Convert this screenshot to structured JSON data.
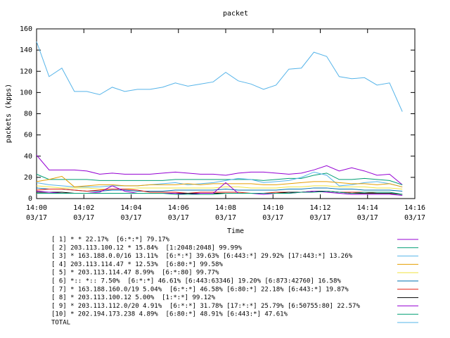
{
  "chart_data": {
    "type": "line",
    "title": "packet",
    "xlabel": "Time",
    "ylabel": "packets (kpps)",
    "x": [
      0,
      0.53,
      1.07,
      1.6,
      2.13,
      2.67,
      3.2,
      3.73,
      4.27,
      4.8,
      5.33,
      5.87,
      6.4,
      6.93,
      7.47,
      8,
      8.53,
      9.07,
      9.6,
      10.13,
      10.67,
      11.2,
      11.73,
      12.27,
      12.8,
      13.33,
      13.87,
      14.4,
      14.93,
      15.47
    ],
    "xlim": [
      0,
      16
    ],
    "xticks": [
      {
        "value": 0,
        "label": "14:00\n03/17"
      },
      {
        "value": 2,
        "label": "14:02\n03/17"
      },
      {
        "value": 4,
        "label": "14:04\n03/17"
      },
      {
        "value": 6,
        "label": "14:06\n03/17"
      },
      {
        "value": 8,
        "label": "14:08\n03/17"
      },
      {
        "value": 10,
        "label": "14:10\n03/17"
      },
      {
        "value": 12,
        "label": "14:12\n03/17"
      },
      {
        "value": 14,
        "label": "14:14\n03/17"
      },
      {
        "value": 16,
        "label": "14:16\n03/17"
      }
    ],
    "ylim": [
      0,
      160
    ],
    "yticks": [
      0,
      20,
      40,
      60,
      80,
      100,
      120,
      140,
      160
    ],
    "grid": false,
    "series": [
      {
        "name": "[ 1] * * 22.17%  [6:*:*] 79.17%",
        "color": "#9400d3",
        "values": [
          41,
          27,
          27,
          27,
          26,
          23,
          24,
          23,
          23,
          23,
          24,
          25,
          24,
          23,
          23,
          22,
          24,
          25,
          25,
          24,
          23,
          24,
          27,
          31,
          26,
          29,
          26,
          22,
          23,
          13
        ]
      },
      {
        "name": "[ 2] 203.113.100.12 * 15.84%  [1:2048:2048] 99.99%",
        "color": "#009e73",
        "values": [
          23,
          18,
          18,
          18,
          18,
          17,
          17,
          17,
          17,
          17,
          17,
          18,
          18,
          18,
          18,
          18,
          18,
          18,
          17,
          18,
          19,
          19,
          22,
          24,
          18,
          18,
          19,
          18,
          17,
          13
        ]
      },
      {
        "name": "[ 3] * 163.188.0.0/16 13.11%  [6:*:*] 39.63% [6:443:*] 29.92% [17:443:*] 13.26%",
        "color": "#56b4e9",
        "values": [
          15,
          13,
          12,
          11,
          11,
          11,
          12,
          12,
          12,
          13,
          14,
          15,
          13,
          14,
          15,
          17,
          19,
          18,
          15,
          16,
          17,
          20,
          25,
          22,
          12,
          13,
          15,
          16,
          14,
          11
        ]
      },
      {
        "name": "[ 4] 203.113.114.47 * 12.53%  [6:80:*] 99.58%",
        "color": "#e69f00",
        "values": [
          16,
          18,
          21,
          11,
          12,
          13,
          13,
          12,
          12,
          13,
          13,
          13,
          14,
          13,
          14,
          14,
          14,
          14,
          13,
          13,
          14,
          15,
          16,
          16,
          15,
          14,
          14,
          13,
          14,
          11
        ]
      },
      {
        "name": "[ 5] * 203.113.114.47 8.99%  [6:*:80] 99.77%",
        "color": "#f0e442",
        "values": [
          12,
          11,
          10,
          10,
          10,
          9,
          9,
          9,
          10,
          10,
          10,
          10,
          10,
          10,
          10,
          11,
          11,
          10,
          10,
          10,
          11,
          11,
          12,
          12,
          11,
          11,
          11,
          10,
          10,
          9
        ]
      },
      {
        "name": "[ 6] *:: *:: 7.50%  [6:*:*] 46.61% [6:443:63346] 19.20% [6:873:42760] 16.58%",
        "color": "#0072b2",
        "values": [
          10,
          9,
          9,
          8,
          7,
          7,
          8,
          8,
          7,
          7,
          7,
          8,
          8,
          8,
          8,
          9,
          8,
          8,
          8,
          8,
          9,
          9,
          10,
          10,
          9,
          9,
          8,
          8,
          8,
          7
        ]
      },
      {
        "name": "[ 7] * 163.188.160.0/19 5.04%  [6:*:*] 46.58% [6:80:*] 22.18% [6:443:*] 19.87%",
        "color": "#e51e10",
        "values": [
          8,
          9,
          9,
          8,
          7,
          8,
          9,
          9,
          8,
          6,
          6,
          6,
          5,
          6,
          6,
          6,
          6,
          5,
          5,
          6,
          6,
          6,
          7,
          7,
          6,
          6,
          6,
          5,
          5,
          4
        ]
      },
      {
        "name": "[ 8] * 203.113.100.12 5.00%  [1:*:*] 99.12%",
        "color": "#000000",
        "values": [
          6,
          6,
          6,
          5,
          5,
          5,
          5,
          5,
          5,
          5,
          5,
          5,
          5,
          5,
          5,
          5,
          5,
          5,
          5,
          5,
          6,
          6,
          7,
          7,
          6,
          5,
          5,
          5,
          5,
          4
        ]
      },
      {
        "name": "[ 9] * 203.113.112.0/20 4.91%  [6:*:*] 31.78% [17:*:*] 25.79% [6:50755:80] 22.57%",
        "color": "#9400d3",
        "values": [
          7,
          6,
          5,
          5,
          5,
          6,
          12,
          7,
          5,
          5,
          5,
          5,
          4,
          5,
          5,
          15,
          5,
          5,
          4,
          5,
          5,
          6,
          7,
          6,
          5,
          4,
          4,
          4,
          4,
          3
        ]
      },
      {
        "name": "[10] * 202.194.173.238 4.89%  [6:80:*] 48.91% [6:443:*] 47.61%",
        "color": "#009e73",
        "values": [
          5,
          5,
          5,
          5,
          5,
          5,
          5,
          5,
          5,
          5,
          5,
          4,
          4,
          4,
          4,
          5,
          5,
          5,
          5,
          5,
          5,
          6,
          6,
          7,
          6,
          5,
          6,
          6,
          6,
          4
        ]
      },
      {
        "name": "TOTAL",
        "color": "#56b4e9",
        "values": [
          148,
          115,
          123,
          101,
          101,
          98,
          105,
          101,
          103,
          103,
          105,
          109,
          106,
          108,
          110,
          119,
          111,
          108,
          103,
          107,
          122,
          123,
          138,
          134,
          115,
          113,
          114,
          107,
          109,
          82
        ]
      }
    ]
  }
}
